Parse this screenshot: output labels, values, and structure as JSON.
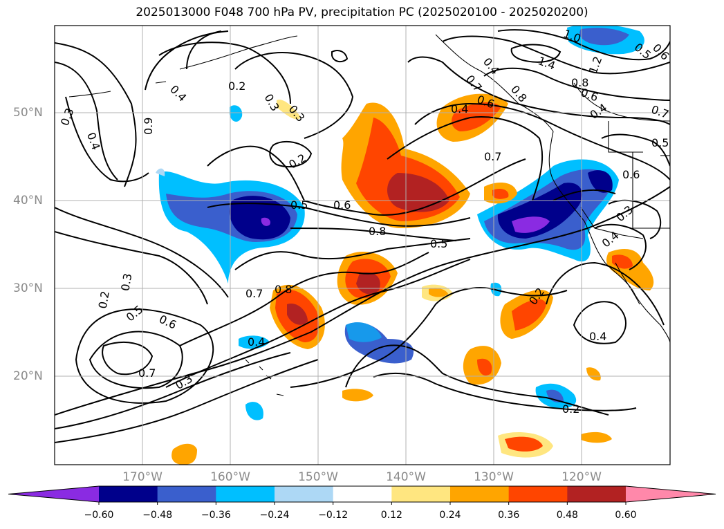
{
  "title": "2025013000 F048 700 hPa PV, precipitation PC (2025020100 - 2025020200)",
  "lon_labels": [
    "170°W",
    "160°W",
    "150°W",
    "140°W",
    "130°W",
    "120°W"
  ],
  "lat_labels": [
    "50°N",
    "40°N",
    "30°N",
    "20°N"
  ],
  "colorbar": {
    "ticks": [
      "−0.60",
      "−0.48",
      "−0.36",
      "−0.24",
      "−0.12",
      "0.12",
      "0.24",
      "0.36",
      "0.48",
      "0.60"
    ],
    "colors": [
      "#8a2be2",
      "#00008b",
      "#3a5fcd",
      "#00bfff",
      "#add8f5",
      "#ffffff",
      "#ffe680",
      "#ffa500",
      "#ff4500",
      "#b22222",
      "#ff88aa"
    ]
  },
  "contour_labels": [
    "0.2",
    "0.3",
    "0.4",
    "0.9",
    "0.3",
    "0.4",
    "0.2",
    "0.5",
    "0.6",
    "0.8",
    "0.5",
    "0.7",
    "0.8",
    "0.7",
    "0.6",
    "0.5",
    "0.4",
    "0.3",
    "0.7",
    "0.6",
    "0.5",
    "0.3",
    "0.4",
    "0.2",
    "0.2",
    "0.4",
    "0.3",
    "0.2",
    "1.0",
    "1.4",
    "1.2",
    "0.8",
    "0.6",
    "0.4",
    "0.7",
    "0.5",
    "0.6",
    "0.3",
    "0.4",
    "0.4",
    "0.7",
    "0.8",
    "0.6"
  ]
}
